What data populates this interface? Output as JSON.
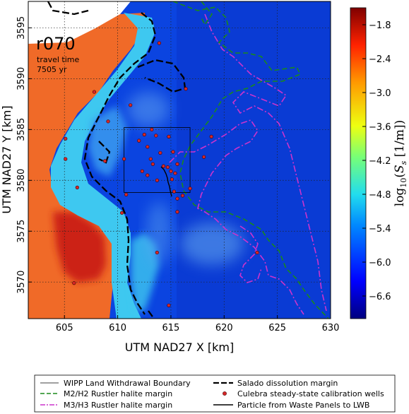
{
  "chart_data": {
    "type": "heatmap",
    "panel_label": "r070",
    "annotation_line1": "travel time",
    "annotation_line2": "7505 yr",
    "xlabel": "UTM NAD27 X [km]",
    "ylabel": "UTM NAD27 Y [km]",
    "xlim": [
      601.6,
      630.0
    ],
    "ylim": [
      3566.4,
      3597.6
    ],
    "x_ticks": [
      605,
      610,
      615,
      620,
      625,
      630
    ],
    "y_ticks": [
      3570,
      3575,
      3580,
      3585,
      3590,
      3595
    ],
    "grid": true,
    "colorbar": {
      "label": "log10(Ss [1/m])",
      "range": [
        -7.0,
        -1.5
      ],
      "ticks": [
        -1.8,
        -2.4,
        -3.0,
        -3.6,
        -4.2,
        -4.8,
        -5.4,
        -6.0,
        -6.6
      ]
    },
    "wipp_boundary": {
      "x": [
        610.6,
        616.8
      ],
      "y": [
        3578.8,
        3585.2
      ]
    },
    "calibration_wells": [
      [
        607.8,
        3588.7
      ],
      [
        609.1,
        3585.8
      ],
      [
        611.2,
        3587.4
      ],
      [
        613.9,
        3593.5
      ],
      [
        605.1,
        3584.1
      ],
      [
        605.1,
        3582.1
      ],
      [
        608.8,
        3581.9
      ],
      [
        610.6,
        3582.1
      ],
      [
        610.8,
        3578.6
      ],
      [
        610.4,
        3576.8
      ],
      [
        606.2,
        3579.3
      ],
      [
        605.9,
        3569.9
      ],
      [
        612.0,
        3583.9
      ],
      [
        612.5,
        3584.5
      ],
      [
        612.8,
        3583.3
      ],
      [
        613.1,
        3582.1
      ],
      [
        613.3,
        3581.6
      ],
      [
        613.6,
        3584.4
      ],
      [
        614.0,
        3582.7
      ],
      [
        614.3,
        3581.4
      ],
      [
        614.7,
        3581.3
      ],
      [
        615.0,
        3580.9
      ],
      [
        615.1,
        3580.1
      ],
      [
        615.4,
        3580.7
      ],
      [
        615.2,
        3582.8
      ],
      [
        615.6,
        3581.6
      ],
      [
        614.8,
        3584.3
      ],
      [
        613.2,
        3585.0
      ],
      [
        612.3,
        3580.9
      ],
      [
        612.8,
        3580.5
      ],
      [
        613.7,
        3580.0
      ],
      [
        615.3,
        3578.9
      ],
      [
        616.1,
        3578.5
      ],
      [
        615.6,
        3576.9
      ],
      [
        618.8,
        3584.3
      ],
      [
        618.1,
        3582.3
      ],
      [
        616.8,
        3579.2
      ],
      [
        613.7,
        3572.9
      ],
      [
        614.8,
        3567.7
      ],
      [
        616.4,
        3589.0
      ],
      [
        623.1,
        3572.9
      ],
      [
        615.6,
        3578.2
      ]
    ],
    "legend": [
      {
        "label": "WIPP Land Withdrawal Boundary",
        "style": "thin-solid",
        "color": "#000000"
      },
      {
        "label": "Salado dissolution margin",
        "style": "bold-dashed",
        "color": "#000000"
      },
      {
        "label": "M2/H2 Rustler halite margin",
        "style": "dashed",
        "color": "#1a8a1a"
      },
      {
        "label": "Culebra steady-state calibration wells",
        "style": "marker",
        "color": "#d62728"
      },
      {
        "label": "M3/H3 Rustler halite margin",
        "style": "dash-dot",
        "color": "#cc33cc"
      },
      {
        "label": "Particle from Waste Panels to LWB",
        "style": "solid",
        "color": "#000000"
      }
    ],
    "colors": {
      "low": "#0b3fd8",
      "mid": "#44c9f0",
      "high": "#f06a28",
      "max": "#c0201e"
    }
  }
}
